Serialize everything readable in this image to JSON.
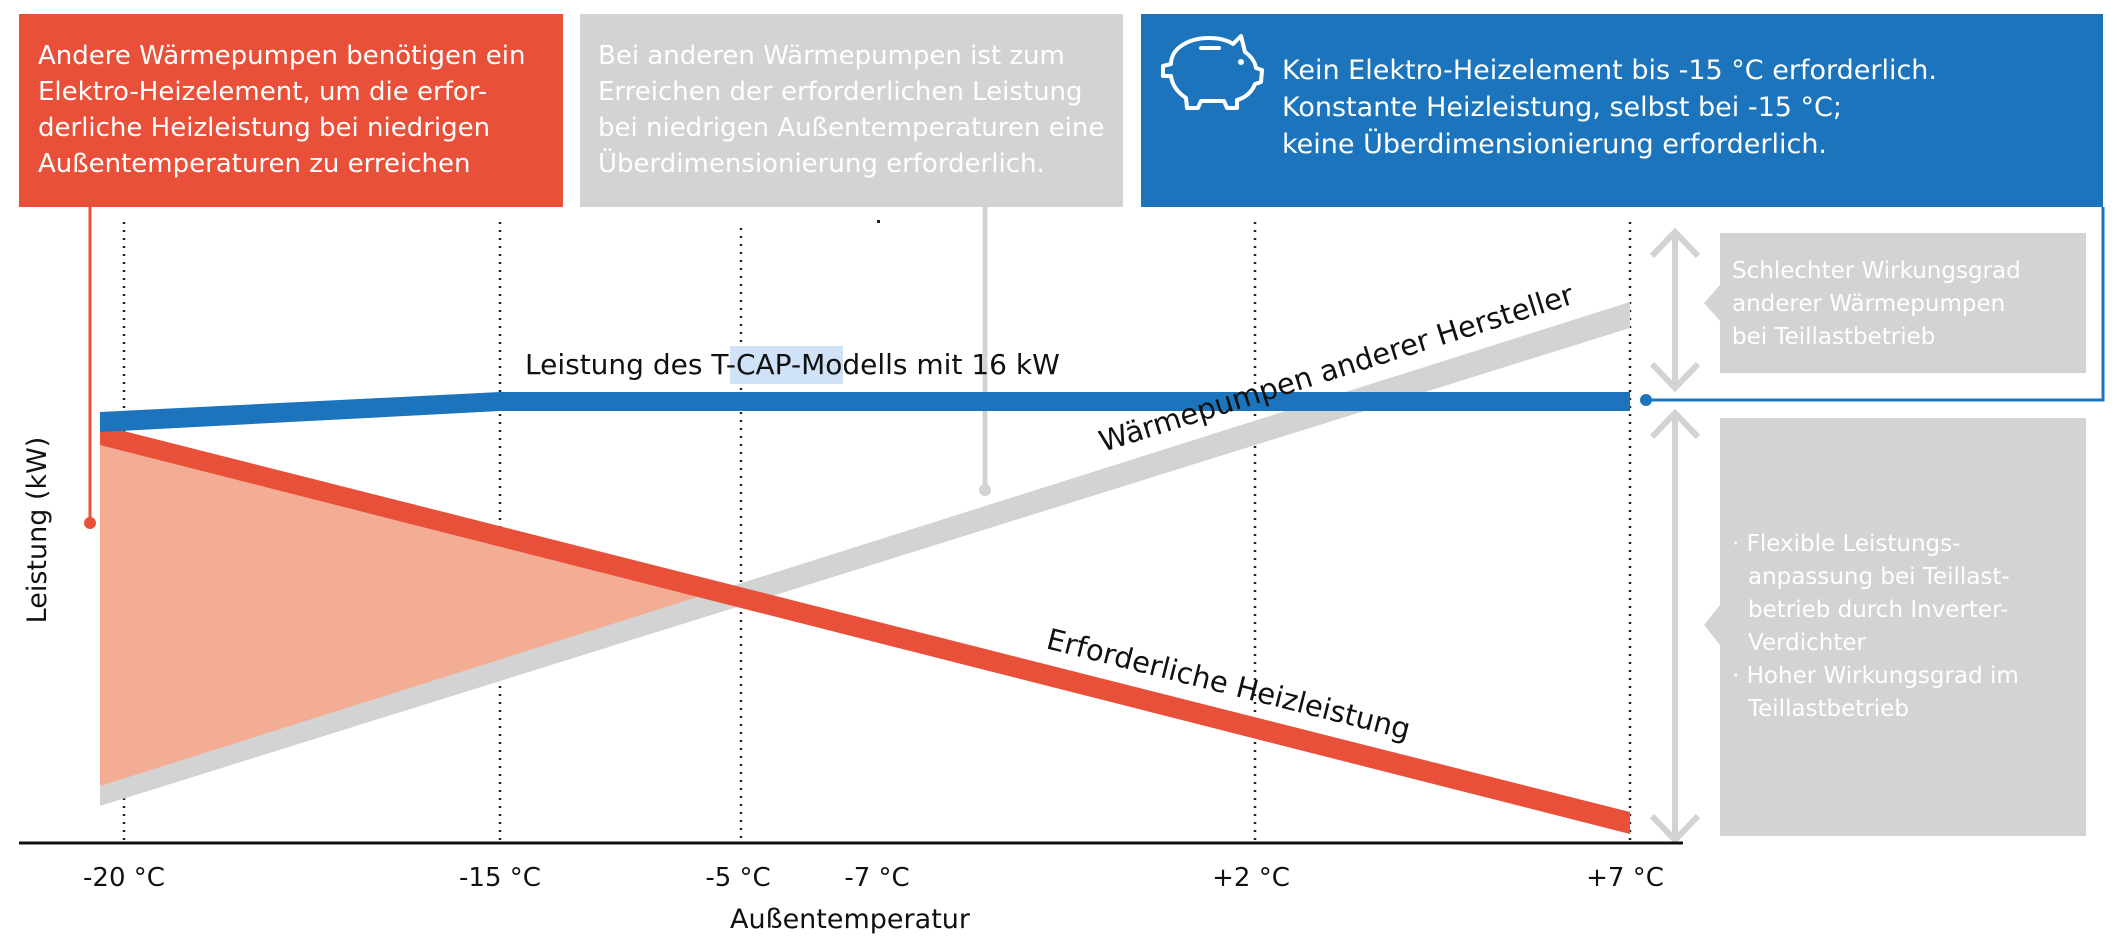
{
  "callouts": {
    "red": {
      "lines": [
        "Andere Wärmepumpen benötigen ein",
        "Elektro-Heizelement, um die erfor-",
        "derliche Heizleistung bei niedrigen",
        "Außentemperaturen zu erreichen"
      ],
      "color": "#e8503a"
    },
    "grey": {
      "lines": [
        "Bei anderen Wärmepumpen ist zum",
        "Erreichen der erforderlichen Leistung",
        "bei niedrigen Außentemperaturen eine",
        "Überdimensionierung erforderlich."
      ],
      "color": "#d3d3d3"
    },
    "blue": {
      "lines": [
        "Kein Elektro-Heizelement bis -15 °C erforderlich.",
        "Konstante Heizleistung, selbst bei -15 °C;",
        "keine Überdimensionierung erforderlich."
      ],
      "color": "#1c75bc",
      "icon": "piggy-bank-icon"
    }
  },
  "side_notes": {
    "top": {
      "lines": [
        "Schlechter Wirkungsgrad",
        "anderer Wärmepumpen",
        "bei Teillastbetrieb"
      ]
    },
    "bottom": {
      "lines": [
        "· Flexible Leistungs-",
        "anpassung bei Teillast-",
        "betrieb durch Inverter-",
        "Verdichter",
        "· Hoher Wirkungsgrad im",
        "Teillastbetrieb"
      ]
    }
  },
  "chart": {
    "y_axis_label": "Leistung (kW)",
    "x_axis_label": "Außentemperatur",
    "x_ticks": [
      "-20 °C",
      "-15 °C",
      "-5 °C",
      "-7 °C",
      "+2 °C",
      "+7 °C"
    ],
    "curves": {
      "tcap": {
        "label_prefix": "Leistung des ",
        "label_highlight": "T-CAP-",
        "label_suffix": "Modells mit 16 kW",
        "color": "#1c75bc",
        "highlight_color": "#cfe2f7"
      },
      "other": {
        "label": "Wärmepumpen anderer Hersteller",
        "color": "#d3d3d3"
      },
      "required": {
        "label": "Erforderliche Heizleistung",
        "color": "#e8503a"
      }
    },
    "fill_color": "#f4ad95",
    "arrow_color": "#d3d3d3"
  }
}
